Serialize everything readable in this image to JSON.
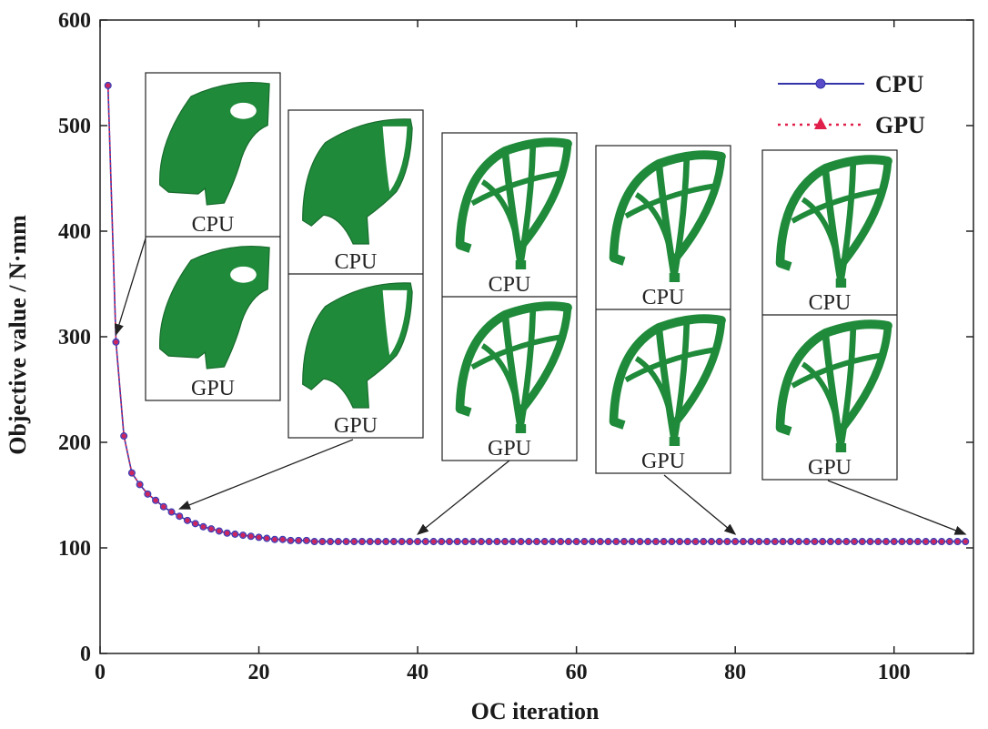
{
  "chart_data": {
    "type": "line",
    "title": "",
    "xlabel": "OC iteration",
    "ylabel": "Objective value / N·mm",
    "xlim": [
      0,
      110
    ],
    "ylim": [
      0,
      600
    ],
    "xticks": [
      "0",
      "20",
      "40",
      "60",
      "80",
      "100"
    ],
    "yticks": [
      "0",
      "100",
      "200",
      "300",
      "400",
      "500",
      "600"
    ],
    "grid": false,
    "legend_position": "top-right",
    "x": [
      1,
      2,
      3,
      4,
      5,
      6,
      7,
      8,
      9,
      10,
      11,
      12,
      13,
      14,
      15,
      16,
      17,
      18,
      19,
      20,
      21,
      22,
      23,
      24,
      25,
      26,
      27,
      28,
      29,
      30,
      31,
      32,
      33,
      34,
      35,
      36,
      37,
      38,
      39,
      40,
      41,
      42,
      43,
      44,
      45,
      46,
      47,
      48,
      49,
      50,
      51,
      52,
      53,
      54,
      55,
      56,
      57,
      58,
      59,
      60,
      61,
      62,
      63,
      64,
      65,
      66,
      67,
      68,
      69,
      70,
      71,
      72,
      73,
      74,
      75,
      76,
      77,
      78,
      79,
      80,
      81,
      82,
      83,
      84,
      85,
      86,
      87,
      88,
      89,
      90,
      91,
      92,
      93,
      94,
      95,
      96,
      97,
      98,
      99,
      100,
      101,
      102,
      103,
      104,
      105,
      106,
      107,
      108,
      109
    ],
    "series": [
      {
        "name": "CPU",
        "color": "#3333aa",
        "marker": "circle",
        "values": [
          538,
          295,
          206,
          171,
          160,
          151,
          145,
          139,
          134,
          130,
          126,
          123,
          120,
          118,
          116,
          114,
          113,
          112,
          111,
          110,
          109,
          108,
          108,
          107,
          107,
          107,
          106,
          106,
          106,
          106,
          106,
          106,
          106,
          106,
          106,
          106,
          106,
          106,
          106,
          106,
          106,
          106,
          106,
          106,
          106,
          106,
          106,
          106,
          106,
          106,
          106,
          106,
          106,
          106,
          106,
          106,
          106,
          106,
          106,
          106,
          106,
          106,
          106,
          106,
          106,
          106,
          106,
          106,
          106,
          106,
          106,
          106,
          106,
          106,
          106,
          106,
          106,
          106,
          106,
          106,
          106,
          106,
          106,
          106,
          106,
          106,
          106,
          106,
          106,
          106,
          106,
          106,
          106,
          106,
          106,
          106,
          106,
          106,
          106,
          106,
          106,
          106,
          106,
          106,
          106,
          106,
          106,
          106,
          106
        ]
      },
      {
        "name": "GPU",
        "color": "#e0204a",
        "marker": "triangle",
        "values": [
          538,
          295,
          206,
          171,
          160,
          151,
          145,
          139,
          134,
          130,
          126,
          123,
          120,
          118,
          116,
          114,
          113,
          112,
          111,
          110,
          109,
          108,
          108,
          107,
          107,
          107,
          106,
          106,
          106,
          106,
          106,
          106,
          106,
          106,
          106,
          106,
          106,
          106,
          106,
          106,
          106,
          106,
          106,
          106,
          106,
          106,
          106,
          106,
          106,
          106,
          106,
          106,
          106,
          106,
          106,
          106,
          106,
          106,
          106,
          106,
          106,
          106,
          106,
          106,
          106,
          106,
          106,
          106,
          106,
          106,
          106,
          106,
          106,
          106,
          106,
          106,
          106,
          106,
          106,
          106,
          106,
          106,
          106,
          106,
          106,
          106,
          106,
          106,
          106,
          106,
          106,
          106,
          106,
          106,
          106,
          106,
          106,
          106,
          106,
          106,
          106,
          106,
          106,
          106,
          106,
          106,
          106,
          106,
          106
        ]
      }
    ],
    "insets": [
      {
        "top_label": "CPU",
        "bottom_label": "GPU",
        "points_to_iteration": 2
      },
      {
        "top_label": "CPU",
        "bottom_label": "GPU",
        "points_to_iteration": 10
      },
      {
        "top_label": "CPU",
        "bottom_label": "GPU",
        "points_to_iteration": 40
      },
      {
        "top_label": "CPU",
        "bottom_label": "GPU",
        "points_to_iteration": 80
      },
      {
        "top_label": "CPU",
        "bottom_label": "GPU",
        "points_to_iteration": 109
      }
    ],
    "annotations": "Insets show optimized topology shapes (green) from CPU and GPU at the indicated iterations"
  }
}
